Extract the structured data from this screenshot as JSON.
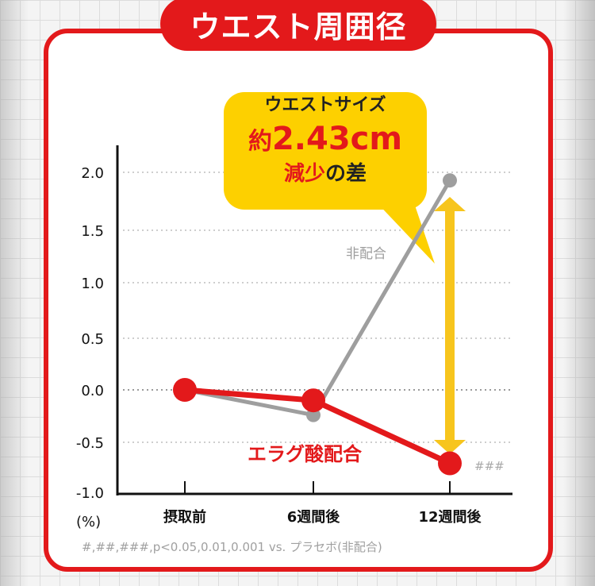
{
  "header": {
    "title": "ウエスト周囲径"
  },
  "callout": {
    "line1": "ウエストサイズ",
    "line2_prefix": "約",
    "line2_value": "2.43cm",
    "line3_red": "減少",
    "line3_rest": "の差"
  },
  "footnote": "#,##,###,p<0.05,0.01,0.001 vs. プラセボ(非配合)",
  "colors": {
    "accent": "#e3191b",
    "callout": "#fdd000",
    "arrow": "#f7c51d",
    "placebo": "#9e9e9e"
  },
  "chart_data": {
    "type": "line",
    "categories": [
      "摂取前",
      "6週間後",
      "12週間後"
    ],
    "series": [
      {
        "name": "非配合",
        "values": [
          0.0,
          -0.24,
          1.93
        ],
        "color": "#9e9e9e"
      },
      {
        "name": "エラグ酸配合",
        "values": [
          0.0,
          -0.1,
          -0.71
        ],
        "color": "#e3191b"
      }
    ],
    "ylim": [
      -1.0,
      2.0
    ],
    "yticks": [
      "2.0",
      "1.5",
      "1.0",
      "0.5",
      "0.0",
      "-0.5",
      "-1.0"
    ],
    "ylabel": "(%)",
    "significance": [
      "",
      "",
      "###"
    ],
    "grid": true
  }
}
